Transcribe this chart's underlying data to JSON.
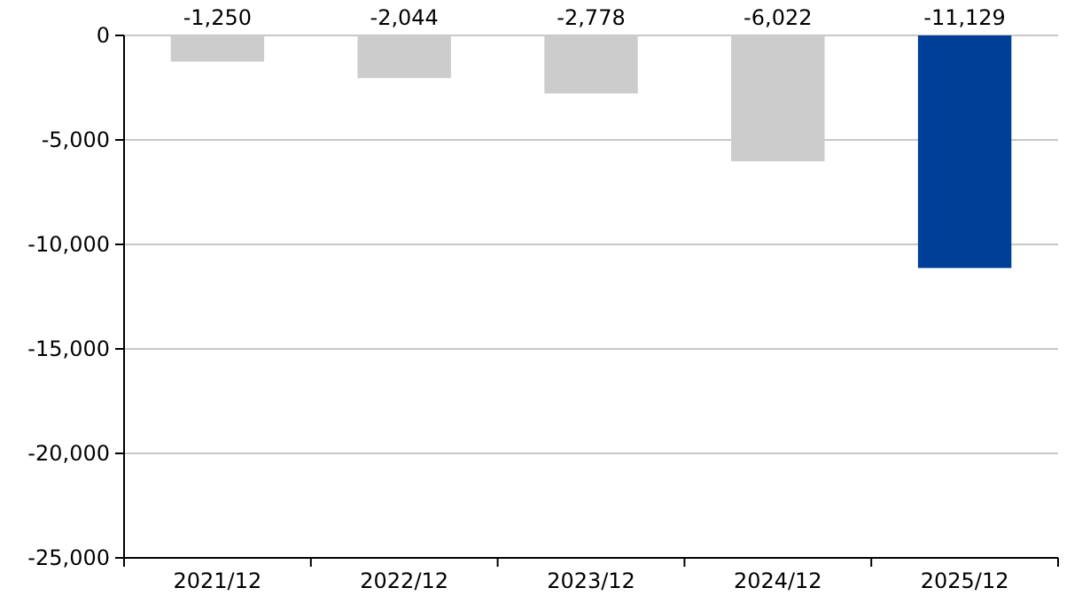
{
  "chart_data": {
    "type": "bar",
    "categories": [
      "2021/12",
      "2022/12",
      "2023/12",
      "2024/12",
      "2025/12"
    ],
    "values": [
      -1250,
      -2044,
      -2778,
      -6022,
      -11129
    ],
    "colors": [
      "#cccccc",
      "#cccccc",
      "#cccccc",
      "#cccccc",
      "#003f98"
    ],
    "ylim": [
      -25000,
      0
    ],
    "yticks": [
      {
        "value": -25000,
        "label": "-25,000"
      },
      {
        "value": -20000,
        "label": "-20,000"
      },
      {
        "value": -15000,
        "label": "-15,000"
      },
      {
        "value": -10000,
        "label": "-10,000"
      },
      {
        "value": -5000,
        "label": "-5,000"
      },
      0
    ],
    "value_labels": [
      "-1,250",
      "-2,044",
      "-2,778",
      "-6,022",
      "-11,129"
    ],
    "grid": "y"
  }
}
